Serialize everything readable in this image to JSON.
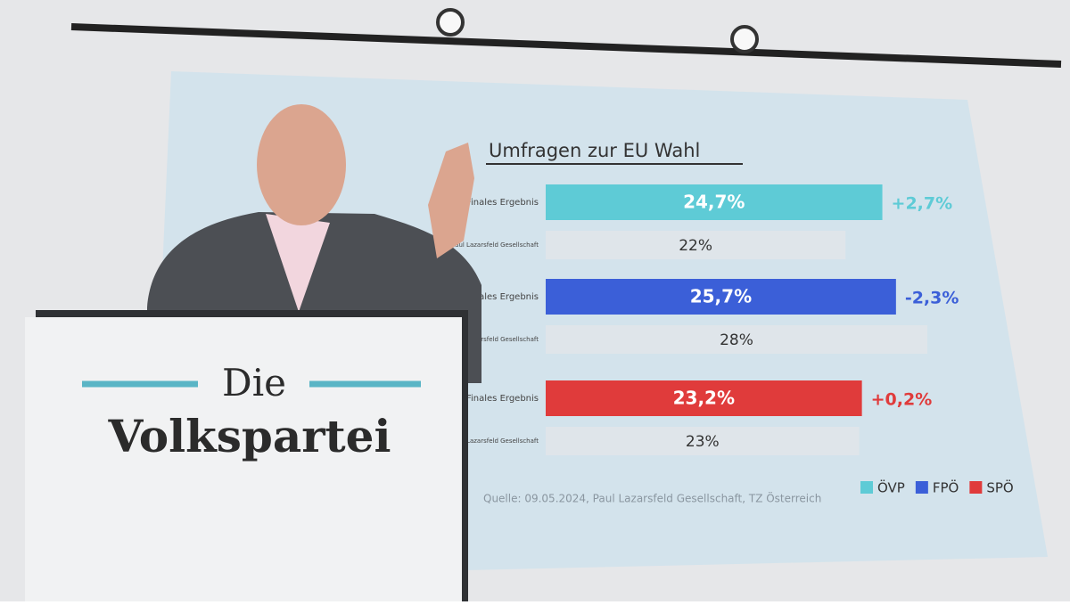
{
  "chart_data": {
    "type": "bar",
    "title": "Umfragen zur EU Wahl",
    "categories": [
      "Finales Ergebnis",
      "Paul Lazarsfeld Gesellschaft"
    ],
    "series": [
      {
        "name": "ÖVP",
        "color": "#5ecbd6",
        "values": [
          24.7,
          22
        ],
        "value_labels": [
          "24,7%",
          "22%"
        ],
        "change": {
          "value": 2.7,
          "label": "+2,7%"
        }
      },
      {
        "name": "FPÖ",
        "color": "#3b5fd8",
        "values": [
          25.7,
          28
        ],
        "value_labels": [
          "25,7%",
          "28%"
        ],
        "change": {
          "value": -2.3,
          "label": "-2,3%"
        }
      },
      {
        "name": "SPÖ",
        "color": "#e03b3b",
        "values": [
          23.2,
          23
        ],
        "value_labels": [
          "23,2%",
          "23%"
        ],
        "change": {
          "value": 0.2,
          "label": "+0,2%"
        }
      }
    ],
    "source": "Quelle: 09.05.2024, Paul Lazarsfeld Gesellschaft, TZ Österreich",
    "legend": "bottom-right"
  },
  "podium": {
    "line1": "Die",
    "line2": "Volkspartei"
  }
}
